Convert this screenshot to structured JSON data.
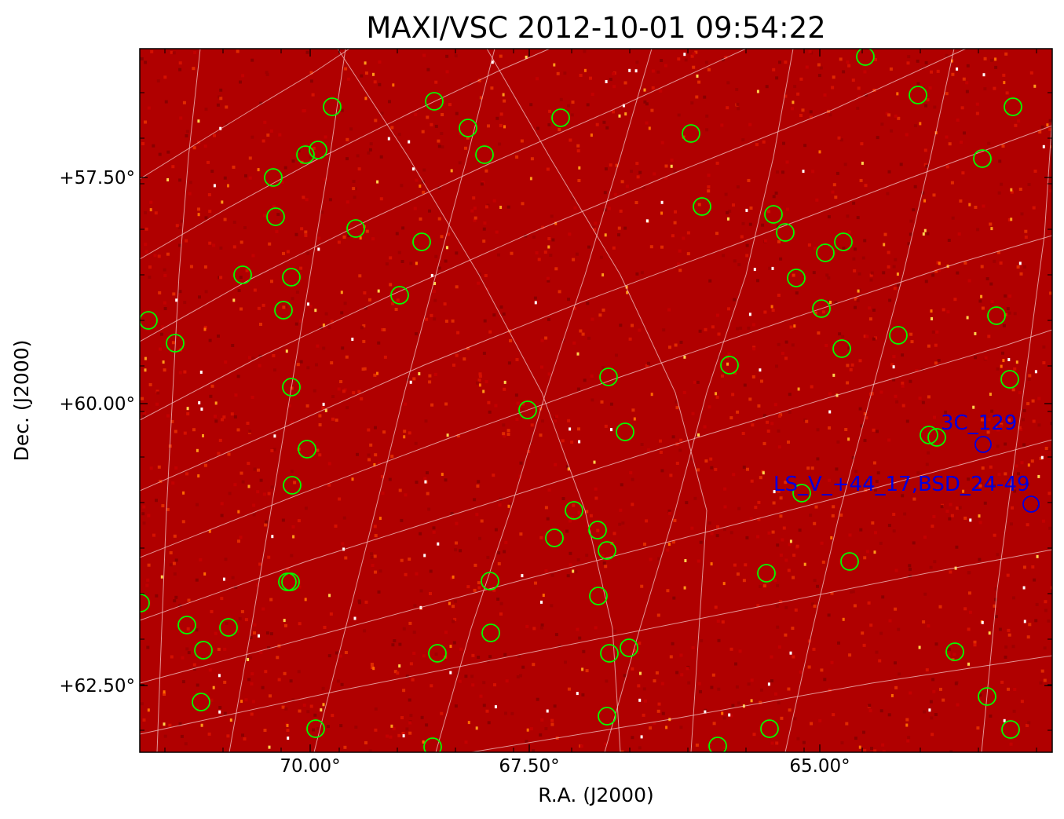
{
  "chart_data": {
    "type": "image",
    "title": "MAXI/VSC 2012-10-01 09:54:22",
    "xlabel": "R.A. (J2000)",
    "ylabel": "Dec. (J2000)",
    "x_ticks": [
      "70.00°",
      "67.50°",
      "65.00°"
    ],
    "y_ticks": [
      "+57.50°",
      "+60.00°",
      "+62.50°"
    ],
    "colormap": "red-hot",
    "background_color": "#b30000",
    "grid_color": "#f4c7c7",
    "marker_color_catalog": "#00ff00",
    "marker_color_labeled": "#0000e0",
    "grid": true,
    "labeled_sources": [
      {
        "name": "3C_129"
      },
      {
        "name": "LS_V_+44_17,BSD_24-49"
      }
    ]
  }
}
